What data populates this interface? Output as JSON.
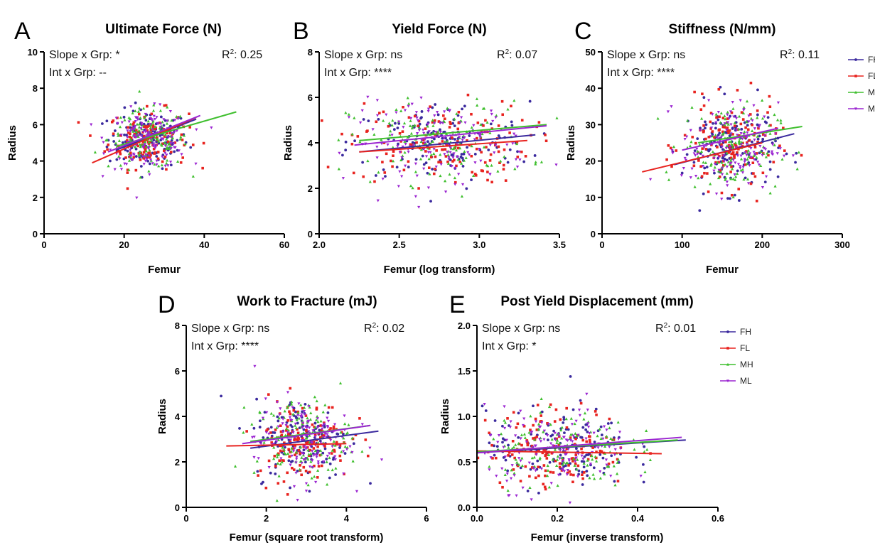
{
  "colors": {
    "FH": "#3b2a9e",
    "FL": "#e8231f",
    "MH": "#3fbf2e",
    "ML": "#9b25d1"
  },
  "chart_data": [
    {
      "letter": "A",
      "type": "scatter",
      "title": "Ultimate  Force (N)",
      "xlabel": "Femur",
      "ylabel": "Radius",
      "xlim": [
        0,
        60
      ],
      "ylim": [
        0,
        10
      ],
      "xticks": [
        0,
        20,
        40,
        60
      ],
      "yticks": [
        0,
        2,
        4,
        6,
        8,
        10
      ],
      "annotations": {
        "slope": "Slope x Grp: *",
        "int": "Int x Grp: --",
        "r2": ": 0.25"
      },
      "cloud": {
        "cx": 26,
        "cy": 5.2,
        "sx": 5,
        "sy": 0.8,
        "n": 140
      },
      "series": [
        {
          "name": "FH",
          "line": [
            [
              18,
              4.6
            ],
            [
              38,
              6.3
            ]
          ]
        },
        {
          "name": "FL",
          "line": [
            [
              12,
              3.9
            ],
            [
              38,
              6.4
            ]
          ]
        },
        {
          "name": "MH",
          "line": [
            [
              18,
              4.8
            ],
            [
              48,
              6.7
            ]
          ]
        },
        {
          "name": "ML",
          "line": [
            [
              16,
              4.5
            ],
            [
              39,
              6.5
            ]
          ]
        }
      ],
      "legend": true
    },
    {
      "letter": "B",
      "type": "scatter",
      "title": "Yield  Force (N)",
      "xlabel": "Femur (log transform)",
      "ylabel": "Radius",
      "xlim": [
        2.0,
        3.5
      ],
      "ylim": [
        0,
        8
      ],
      "xticks": [
        "2.0",
        "2.5",
        "3.0",
        "3.5"
      ],
      "yticks": [
        0,
        2,
        4,
        6,
        8
      ],
      "annotations": {
        "slope": "Slope x Grp: ns",
        "int": "Int x Grp: ****",
        "r2": ": 0.07"
      },
      "cloud": {
        "cx": 2.75,
        "cy": 4.0,
        "sx": 0.28,
        "sy": 0.9,
        "n": 140
      },
      "series": [
        {
          "name": "FH",
          "line": [
            [
              2.25,
              3.6
            ],
            [
              3.35,
              4.35
            ]
          ]
        },
        {
          "name": "FL",
          "line": [
            [
              2.25,
              3.6
            ],
            [
              3.3,
              4.1
            ]
          ]
        },
        {
          "name": "MH",
          "line": [
            [
              2.25,
              4.1
            ],
            [
              3.42,
              4.8
            ]
          ]
        },
        {
          "name": "ML",
          "line": [
            [
              2.22,
              3.9
            ],
            [
              3.42,
              4.75
            ]
          ]
        }
      ],
      "legend": false
    },
    {
      "letter": "C",
      "type": "scatter",
      "title": "Stiffness (N/mm)",
      "xlabel": "Femur",
      "ylabel": "Radius",
      "xlim": [
        0,
        300
      ],
      "ylim": [
        0,
        50
      ],
      "xticks": [
        0,
        100,
        200,
        300
      ],
      "yticks": [
        0,
        10,
        20,
        30,
        40,
        50
      ],
      "annotations": {
        "slope": "Slope x Grp: ns",
        "int": "Int x Grp: ****",
        "r2": ": 0.11"
      },
      "cloud": {
        "cx": 160,
        "cy": 24,
        "sx": 30,
        "sy": 6,
        "n": 140
      },
      "series": [
        {
          "name": "FH",
          "line": [
            [
              90,
              19
            ],
            [
              240,
              27.5
            ]
          ]
        },
        {
          "name": "FL",
          "line": [
            [
              50,
              17
            ],
            [
              200,
              25
            ]
          ]
        },
        {
          "name": "MH",
          "line": [
            [
              120,
              25
            ],
            [
              250,
              29.5
            ]
          ]
        },
        {
          "name": "ML",
          "line": [
            [
              100,
              23
            ],
            [
              220,
              29
            ]
          ]
        }
      ],
      "legend": true,
      "legend_labels": [
        "FH",
        "FL",
        "MH",
        "ML"
      ]
    },
    {
      "letter": "D",
      "type": "scatter",
      "title": "Work to Fracture (mJ)",
      "xlabel": "Femur (square root transform)",
      "ylabel": "Radius",
      "xlim": [
        0,
        6
      ],
      "ylim": [
        0,
        8
      ],
      "xticks": [
        0,
        2,
        4,
        6
      ],
      "yticks": [
        0,
        2,
        4,
        6,
        8
      ],
      "annotations": {
        "slope": "Slope x Grp: ns",
        "int": "Int x Grp: ****",
        "r2": ": 0.02"
      },
      "cloud": {
        "cx": 2.9,
        "cy": 3.0,
        "sx": 0.6,
        "sy": 0.9,
        "n": 140
      },
      "series": [
        {
          "name": "FH",
          "line": [
            [
              1.6,
              2.6
            ],
            [
              4.8,
              3.35
            ]
          ]
        },
        {
          "name": "FL",
          "line": [
            [
              1.0,
              2.7
            ],
            [
              4.0,
              2.8
            ]
          ]
        },
        {
          "name": "MH",
          "line": [
            [
              1.6,
              2.9
            ],
            [
              4.6,
              3.6
            ]
          ]
        },
        {
          "name": "ML",
          "line": [
            [
              1.4,
              2.8
            ],
            [
              4.6,
              3.6
            ]
          ]
        }
      ],
      "legend": false
    },
    {
      "letter": "E",
      "type": "scatter",
      "title": "Post Yield Displacement (mm)",
      "xlabel": "Femur (inverse transform)",
      "ylabel": "Radius",
      "xlim": [
        0.0,
        0.6
      ],
      "ylim": [
        0.0,
        2.0
      ],
      "xticks": [
        "0.0",
        "0.2",
        "0.4",
        "0.6"
      ],
      "yticks": [
        "0.0",
        "0.5",
        "1.0",
        "1.5",
        "2.0"
      ],
      "annotations": {
        "slope": "Slope x Grp: ns",
        "int": "Int x Grp: *",
        "r2": ": 0.01"
      },
      "cloud": {
        "cx": 0.2,
        "cy": 0.65,
        "sx": 0.09,
        "sy": 0.22,
        "n": 140
      },
      "series": [
        {
          "name": "FH",
          "line": [
            [
              0.0,
              0.6
            ],
            [
              0.52,
              0.74
            ]
          ]
        },
        {
          "name": "FL",
          "line": [
            [
              0.0,
              0.62
            ],
            [
              0.46,
              0.59
            ]
          ]
        },
        {
          "name": "MH",
          "line": [
            [
              0.0,
              0.61
            ],
            [
              0.5,
              0.74
            ]
          ]
        },
        {
          "name": "ML",
          "line": [
            [
              0.0,
              0.6
            ],
            [
              0.51,
              0.77
            ]
          ]
        }
      ],
      "legend": true,
      "legend_labels": [
        "FH",
        "FL",
        "MH",
        "ML"
      ]
    }
  ]
}
